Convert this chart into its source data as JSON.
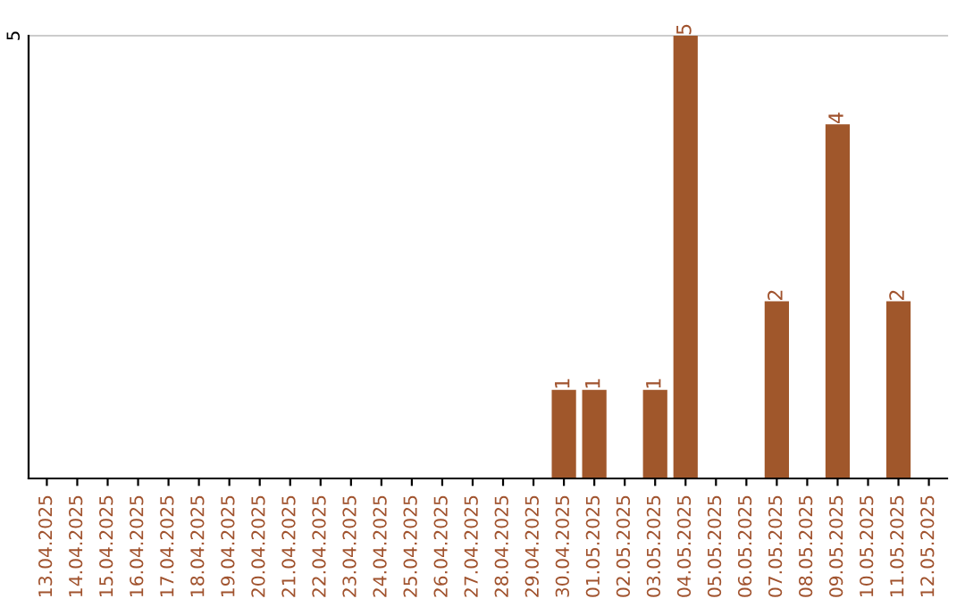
{
  "chart_data": {
    "type": "bar",
    "ylim": [
      0,
      5
    ],
    "categories": [
      "13.04.2025",
      "14.04.2025",
      "15.04.2025",
      "16.04.2025",
      "17.04.2025",
      "18.04.2025",
      "19.04.2025",
      "20.04.2025",
      "21.04.2025",
      "22.04.2025",
      "23.04.2025",
      "24.04.2025",
      "25.04.2025",
      "26.04.2025",
      "27.04.2025",
      "28.04.2025",
      "29.04.2025",
      "30.04.2025",
      "01.05.2025",
      "02.05.2025",
      "03.05.2025",
      "04.05.2025",
      "05.05.2025",
      "06.05.2025",
      "07.05.2025",
      "08.05.2025",
      "09.05.2025",
      "10.05.2025",
      "11.05.2025",
      "12.05.2025"
    ],
    "values": [
      null,
      null,
      null,
      null,
      null,
      null,
      null,
      null,
      null,
      null,
      null,
      null,
      null,
      null,
      null,
      null,
      null,
      1,
      1,
      null,
      1,
      5,
      null,
      null,
      2,
      null,
      4,
      null,
      2,
      null
    ],
    "value_labels": [
      null,
      null,
      null,
      null,
      null,
      null,
      null,
      null,
      null,
      null,
      null,
      null,
      null,
      null,
      null,
      null,
      null,
      "1",
      "1",
      null,
      "1",
      "5",
      null,
      null,
      "2",
      null,
      "4",
      null,
      "2",
      null
    ],
    "color": "#a0572b",
    "ref_lines": [
      {
        "axis": "y",
        "value": 5,
        "label": "5",
        "color": "#cccccc"
      }
    ]
  }
}
